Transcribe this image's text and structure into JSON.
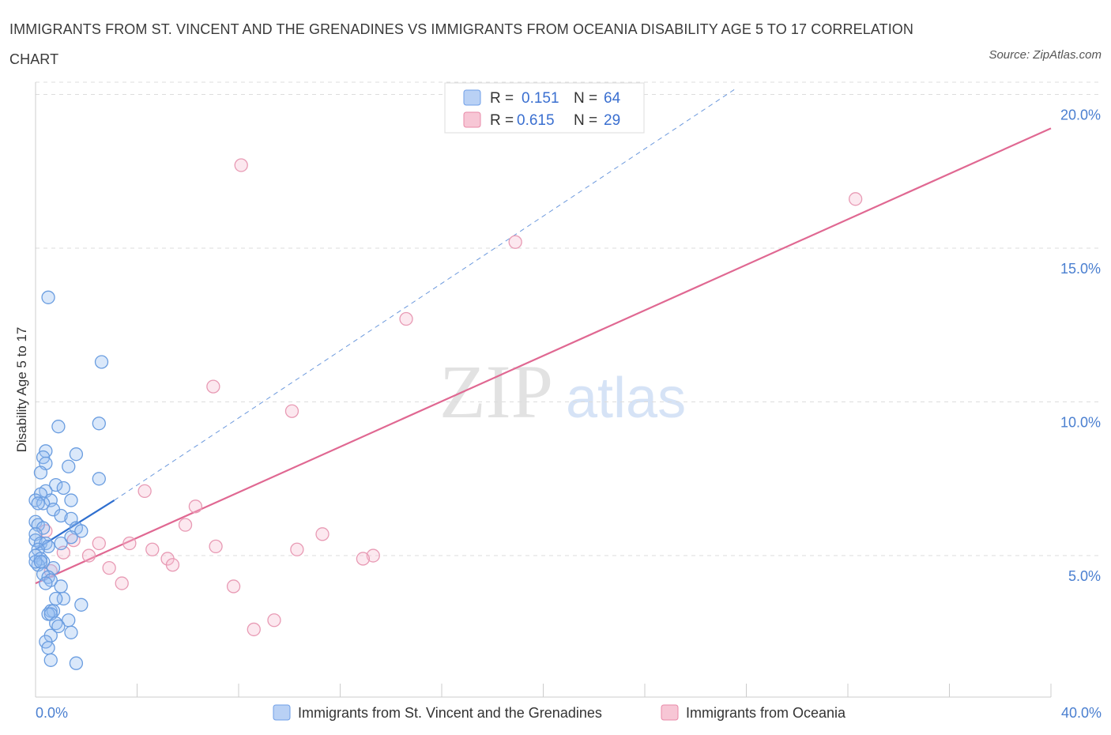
{
  "title": "IMMIGRANTS FROM ST. VINCENT AND THE GRENADINES VS IMMIGRANTS FROM OCEANIA DISABILITY AGE 5 TO 17 CORRELATION CHART",
  "source": "Source: ZipAtlas.com",
  "watermark": {
    "zip": "ZIP",
    "atlas": "atlas"
  },
  "legend": {
    "r_label": "R =",
    "n_label": "N =",
    "rows": [
      {
        "r": "0.151",
        "n": "64",
        "color": "#6f9fe8",
        "fill": "#b9d1f5"
      },
      {
        "r": "0.615",
        "n": "29",
        "color": "#e88aa8",
        "fill": "#f7c6d5"
      }
    ]
  },
  "colors": {
    "blue_point_stroke": "#6a9de0",
    "blue_point_fill": "rgba(150,190,240,0.35)",
    "pink_point_stroke": "#e89ab4",
    "pink_point_fill": "rgba(245,190,210,0.35)",
    "blue_line": "#2f6fcf",
    "pink_line": "#e06892",
    "grid": "#dddddd"
  },
  "chart_data": {
    "type": "scatter",
    "xlabel": "",
    "ylabel": "Disability Age 5 to 17",
    "xlim": [
      0,
      40
    ],
    "ylim": [
      0.4,
      20.4
    ],
    "x_tick_labels": [
      "0.0%",
      "40.0%"
    ],
    "y_ticks": [
      5,
      10,
      15,
      20
    ],
    "y_tick_labels": [
      "5.0%",
      "10.0%",
      "15.0%",
      "20.0%"
    ],
    "grid": "horizontal dashed",
    "legend_position": "top-center",
    "series": [
      {
        "name": "Immigrants from St. Vincent and the Grenadines",
        "points": [
          [
            0.5,
            13.4
          ],
          [
            2.6,
            11.3
          ],
          [
            0.9,
            9.2
          ],
          [
            2.5,
            9.3
          ],
          [
            0.4,
            8.4
          ],
          [
            1.6,
            8.3
          ],
          [
            0.3,
            8.2
          ],
          [
            0.4,
            8.0
          ],
          [
            1.3,
            7.9
          ],
          [
            0.2,
            7.7
          ],
          [
            2.5,
            7.5
          ],
          [
            0.8,
            7.3
          ],
          [
            1.1,
            7.2
          ],
          [
            0.4,
            7.1
          ],
          [
            0.2,
            7.0
          ],
          [
            0.0,
            6.8
          ],
          [
            0.6,
            6.8
          ],
          [
            1.4,
            6.8
          ],
          [
            0.3,
            6.7
          ],
          [
            0.1,
            6.7
          ],
          [
            0.7,
            6.5
          ],
          [
            1.0,
            6.3
          ],
          [
            1.4,
            6.2
          ],
          [
            0.0,
            6.1
          ],
          [
            0.1,
            6.0
          ],
          [
            0.3,
            5.9
          ],
          [
            1.6,
            5.9
          ],
          [
            1.8,
            5.8
          ],
          [
            0.0,
            5.7
          ],
          [
            1.4,
            5.6
          ],
          [
            0.0,
            5.5
          ],
          [
            0.2,
            5.4
          ],
          [
            0.4,
            5.4
          ],
          [
            0.5,
            5.3
          ],
          [
            1.0,
            5.4
          ],
          [
            0.1,
            5.2
          ],
          [
            0.0,
            5.0
          ],
          [
            0.2,
            4.9
          ],
          [
            0.3,
            4.8
          ],
          [
            0.1,
            4.7
          ],
          [
            0.0,
            4.8
          ],
          [
            0.2,
            4.8
          ],
          [
            0.7,
            4.6
          ],
          [
            0.3,
            4.4
          ],
          [
            0.5,
            4.3
          ],
          [
            0.6,
            4.2
          ],
          [
            0.4,
            4.1
          ],
          [
            1.0,
            4.0
          ],
          [
            1.1,
            3.6
          ],
          [
            0.8,
            3.6
          ],
          [
            1.8,
            3.4
          ],
          [
            0.6,
            3.2
          ],
          [
            0.7,
            3.2
          ],
          [
            0.5,
            3.1
          ],
          [
            0.6,
            3.1
          ],
          [
            1.3,
            2.9
          ],
          [
            0.8,
            2.8
          ],
          [
            0.9,
            2.7
          ],
          [
            1.4,
            2.5
          ],
          [
            0.6,
            2.4
          ],
          [
            0.4,
            2.2
          ],
          [
            0.5,
            2.0
          ],
          [
            0.6,
            1.6
          ],
          [
            1.6,
            1.5
          ]
        ]
      },
      {
        "name": "Immigrants from Oceania",
        "points": [
          [
            8.1,
            17.7
          ],
          [
            32.3,
            16.6
          ],
          [
            18.9,
            15.2
          ],
          [
            14.6,
            12.7
          ],
          [
            7.0,
            10.5
          ],
          [
            10.1,
            9.7
          ],
          [
            4.3,
            7.1
          ],
          [
            6.3,
            6.6
          ],
          [
            5.9,
            6.0
          ],
          [
            11.3,
            5.7
          ],
          [
            0.4,
            5.8
          ],
          [
            1.5,
            5.5
          ],
          [
            2.5,
            5.4
          ],
          [
            3.7,
            5.4
          ],
          [
            7.1,
            5.3
          ],
          [
            4.6,
            5.2
          ],
          [
            10.3,
            5.2
          ],
          [
            1.1,
            5.1
          ],
          [
            2.1,
            5.0
          ],
          [
            13.3,
            5.0
          ],
          [
            12.9,
            4.9
          ],
          [
            5.2,
            4.9
          ],
          [
            5.4,
            4.7
          ],
          [
            2.9,
            4.6
          ],
          [
            0.6,
            4.5
          ],
          [
            3.4,
            4.1
          ],
          [
            7.8,
            4.0
          ],
          [
            9.4,
            2.9
          ],
          [
            8.6,
            2.6
          ]
        ]
      }
    ],
    "trend_lines": [
      {
        "series": "Immigrants from St. Vincent and the Grenadines",
        "solid": [
          [
            0.0,
            5.2
          ],
          [
            3.1,
            6.8
          ]
        ],
        "dashed": [
          [
            3.1,
            6.8
          ],
          [
            27.6,
            20.2
          ]
        ]
      },
      {
        "series": "Immigrants from Oceania",
        "solid": [
          [
            0.0,
            4.1
          ],
          [
            40.0,
            18.9
          ]
        ]
      }
    ]
  }
}
